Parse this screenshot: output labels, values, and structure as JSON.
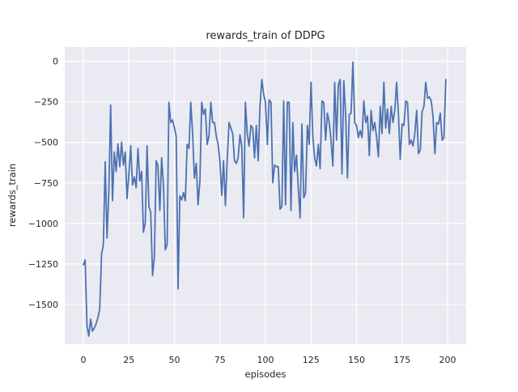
{
  "figure": {
    "title": "rewards_train of DDPG",
    "xlabel": "episodes",
    "ylabel": "rewards_train"
  },
  "chart_data": {
    "type": "line",
    "title": "rewards_train of DDPG",
    "xlabel": "episodes",
    "ylabel": "rewards_train",
    "legend_position": "none",
    "grid": true,
    "style": "seaborn-darkgrid",
    "xlim": [
      -10.2,
      210.2
    ],
    "ylim": [
      -1745,
      88
    ],
    "xticks": {
      "values": [
        0,
        25,
        50,
        75,
        100,
        125,
        150,
        175,
        200
      ],
      "labels": [
        "0",
        "25",
        "50",
        "75",
        "100",
        "125",
        "150",
        "175",
        "200"
      ]
    },
    "yticks": {
      "values": [
        0,
        -250,
        -500,
        -750,
        -1000,
        -1250,
        -1500
      ],
      "labels": [
        "0",
        "−250",
        "−500",
        "−750",
        "−1000",
        "−1250",
        "−1500"
      ]
    },
    "x_start": 0,
    "x_step": 1,
    "series": [
      {
        "name": "rewards_train",
        "color": "#4c72b0",
        "values": [
          -1255,
          -1225,
          -1630,
          -1695,
          -1590,
          -1665,
          -1645,
          -1620,
          -1580,
          -1530,
          -1190,
          -1130,
          -620,
          -1090,
          -800,
          -270,
          -860,
          -560,
          -680,
          -510,
          -650,
          -500,
          -640,
          -560,
          -847,
          -700,
          -521,
          -763,
          -713,
          -780,
          -538,
          -738,
          -680,
          -1055,
          -997,
          -521,
          -896,
          -930,
          -1321,
          -1213,
          -613,
          -646,
          -921,
          -596,
          -763,
          -1163,
          -1130,
          -253,
          -378,
          -362,
          -412,
          -462,
          -1405,
          -830,
          -855,
          -810,
          -860,
          -513,
          -538,
          -253,
          -446,
          -721,
          -630,
          -885,
          -738,
          -253,
          -327,
          -295,
          -513,
          -462,
          -253,
          -378,
          -378,
          -462,
          -513,
          -613,
          -827,
          -613,
          -890,
          -613,
          -378,
          -412,
          -446,
          -613,
          -630,
          -596,
          -454,
          -523,
          -966,
          -253,
          -446,
          -523,
          -396,
          -412,
          -596,
          -396,
          -613,
          -278,
          -113,
          -203,
          -253,
          -513,
          -237,
          -253,
          -749,
          -640,
          -650,
          -650,
          -913,
          -896,
          -245,
          -885,
          -253,
          -253,
          -920,
          -378,
          -680,
          -580,
          -780,
          -966,
          -387,
          -843,
          -810,
          -396,
          -513,
          -130,
          -462,
          -596,
          -646,
          -513,
          -662,
          -245,
          -253,
          -487,
          -320,
          -378,
          -487,
          -646,
          -130,
          -487,
          -145,
          -113,
          -695,
          -121,
          -328,
          -720,
          -328,
          -320,
          -5,
          -378,
          -396,
          -470,
          -428,
          -470,
          -245,
          -378,
          -337,
          -582,
          -303,
          -428,
          -378,
          -470,
          -590,
          -278,
          -446,
          -130,
          -412,
          -295,
          -446,
          -278,
          -378,
          -303,
          -130,
          -328,
          -605,
          -387,
          -396,
          -245,
          -253,
          -513,
          -487,
          -523,
          -446,
          -303,
          -570,
          -546,
          -311,
          -278,
          -130,
          -228,
          -220,
          -245,
          -340,
          -570,
          -378,
          -387,
          -320,
          -487,
          -470,
          -113
        ]
      }
    ],
    "colors": {
      "figure_background": "#ffffff",
      "axes_background": "#eaeaf2",
      "grid": "#ffffff",
      "text": "#262626",
      "line": "#4c72b0"
    }
  }
}
